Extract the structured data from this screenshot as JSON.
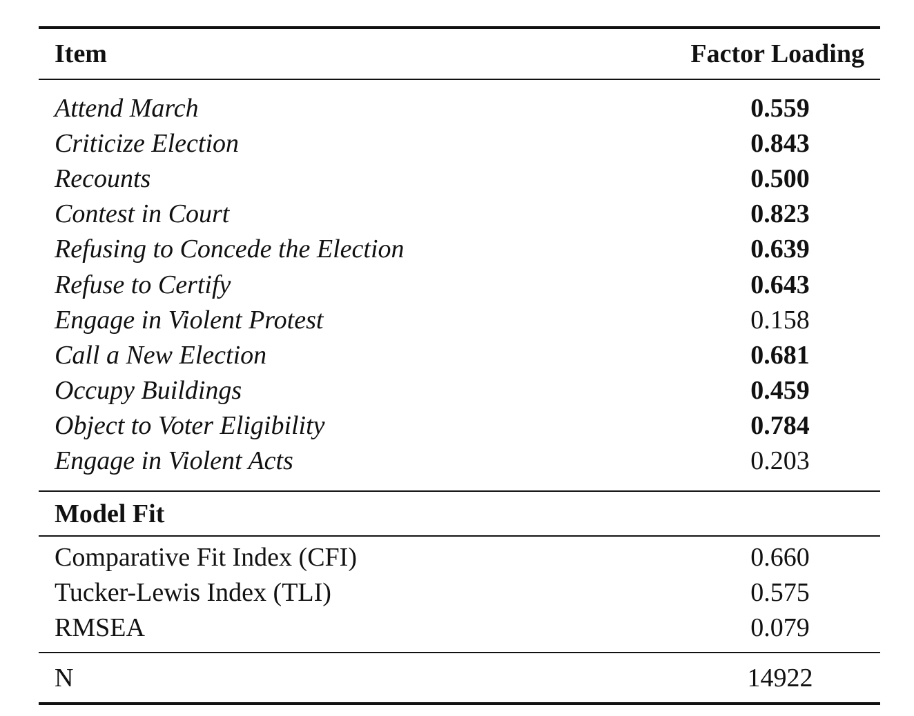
{
  "header": {
    "item_label": "Item",
    "loading_label": "Factor Loading"
  },
  "items": [
    {
      "label": "Attend March",
      "value": "0.559",
      "bold": true
    },
    {
      "label": "Criticize Election",
      "value": "0.843",
      "bold": true
    },
    {
      "label": "Recounts",
      "value": "0.500",
      "bold": true
    },
    {
      "label": "Contest in Court",
      "value": "0.823",
      "bold": true
    },
    {
      "label": "Refusing to Concede the Election",
      "value": "0.639",
      "bold": true
    },
    {
      "label": "Refuse to Certify",
      "value": "0.643",
      "bold": true
    },
    {
      "label": "Engage in Violent Protest",
      "value": "0.158",
      "bold": false
    },
    {
      "label": "Call a New Election",
      "value": "0.681",
      "bold": true
    },
    {
      "label": "Occupy Buildings",
      "value": "0.459",
      "bold": true
    },
    {
      "label": "Object to Voter Eligibility",
      "value": "0.784",
      "bold": true
    },
    {
      "label": "Engage in Violent Acts",
      "value": "0.203",
      "bold": false
    }
  ],
  "model_fit": {
    "title": "Model Fit",
    "rows": [
      {
        "label": "Comparative Fit Index (CFI)",
        "value": "0.660"
      },
      {
        "label": "Tucker-Lewis Index (TLI)",
        "value": "0.575"
      },
      {
        "label": "RMSEA",
        "value": "0.079"
      }
    ]
  },
  "n_row": {
    "label": "N",
    "value": "14922"
  }
}
